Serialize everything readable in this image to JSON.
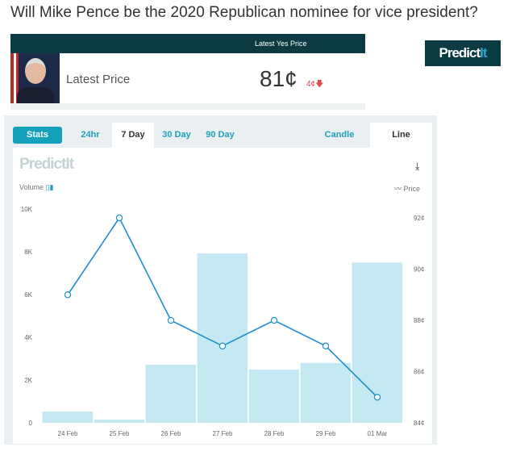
{
  "title": "Will Mike Pence be the 2020 Republican nominee for vice president?",
  "header": {
    "column_label": "Latest Yes Price",
    "row_label": "Latest Price",
    "price": "81¢",
    "change": "4¢",
    "change_direction": "down",
    "change_color": "#e04a4a"
  },
  "logo": {
    "text_a": "Predict",
    "text_b": "It"
  },
  "tabs": {
    "stats": "Stats",
    "ranges": [
      "24hr",
      "7 Day",
      "30 Day",
      "90 Day"
    ],
    "active_range": "7 Day",
    "types": [
      "Candle",
      "Line"
    ],
    "active_type": "Line"
  },
  "chart_legend": {
    "volume": "Volume",
    "price": "Price",
    "watermark": "PredictIt"
  },
  "colors": {
    "accent": "#14a2bb",
    "dark": "#0b3a42",
    "bar": "#c5e9f2",
    "line": "#1e8fcf"
  },
  "chart_data": {
    "type": "bar+line",
    "categories": [
      "24 Feb",
      "25 Feb",
      "26 Feb",
      "27 Feb",
      "28 Feb",
      "29 Feb",
      "01 Mar"
    ],
    "series": [
      {
        "name": "Volume",
        "type": "bar",
        "axis": "left",
        "values": [
          530,
          150,
          2720,
          7920,
          2490,
          2800,
          7500
        ]
      },
      {
        "name": "Price",
        "type": "line",
        "axis": "right",
        "values": [
          89,
          92,
          88,
          87,
          88,
          87,
          85
        ]
      }
    ],
    "left_axis": {
      "ticks": [
        "0",
        "2K",
        "4K",
        "6K",
        "8K",
        "10K"
      ],
      "range": [
        0,
        10000
      ]
    },
    "right_axis": {
      "ticks": [
        "84¢",
        "86¢",
        "88¢",
        "90¢",
        "92¢"
      ],
      "range": [
        84,
        92
      ]
    },
    "grid": false
  }
}
